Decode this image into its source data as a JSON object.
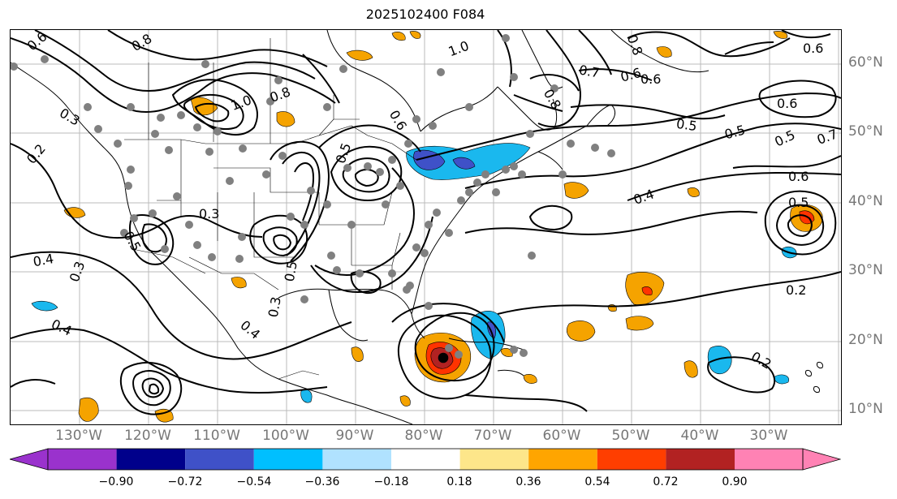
{
  "title": "2025102400 F084",
  "map": {
    "lat_labels": [
      "60°N",
      "50°N",
      "40°N",
      "30°N",
      "20°N",
      "10°N"
    ],
    "lon_labels": [
      "130°W",
      "120°W",
      "110°W",
      "100°W",
      "90°W",
      "80°W",
      "70°W",
      "60°W",
      "50°W",
      "40°W",
      "30°W"
    ],
    "contour_labels": [
      "0.6",
      "0.8",
      "1.0",
      "0.8",
      "0.6",
      "0.7",
      "0.6",
      "0.6",
      "0.5",
      "0.5",
      "0.5",
      "0.7",
      "0.6",
      "0.5",
      "0.4",
      "0.2",
      "0.3",
      "0.8",
      "0.6",
      "0.5",
      "0.3",
      "0.4",
      "0.5",
      "0.3",
      "0.2",
      "0.3",
      "0.4",
      "0.4",
      "0.5",
      "0.2",
      "1.0",
      "0.8",
      "0.6"
    ],
    "station_marker": "gray-dot",
    "shading_colors": {
      "positive": "#f5a300",
      "strong_positive": "#ff3300",
      "negative": "#1ab8ee",
      "strong_negative": "#3f51c8"
    }
  },
  "colorbar": {
    "ticks": [
      "−0.90",
      "−0.72",
      "−0.54",
      "−0.36",
      "−0.18",
      "0.18",
      "0.36",
      "0.54",
      "0.72",
      "0.90"
    ],
    "colors": [
      "#9a32cd",
      "#00008b",
      "#3f51c8",
      "#00bfff",
      "#b0e2ff",
      "#ffffff",
      "#fde68a",
      "#ffa500",
      "#ff3e00",
      "#b22222",
      "#ff82b4"
    ]
  }
}
